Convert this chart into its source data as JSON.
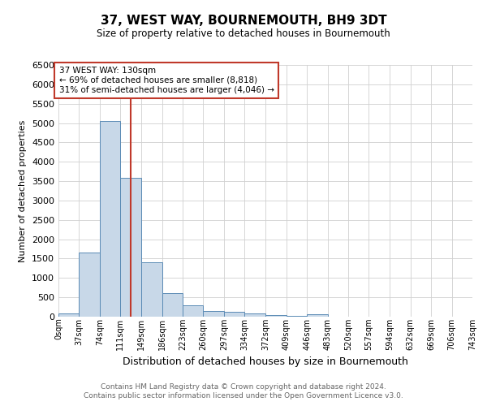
{
  "title": "37, WEST WAY, BOURNEMOUTH, BH9 3DT",
  "subtitle": "Size of property relative to detached houses in Bournemouth",
  "xlabel": "Distribution of detached houses by size in Bournemouth",
  "ylabel": "Number of detached properties",
  "bin_edges": [
    0,
    37,
    74,
    111,
    149,
    186,
    223,
    260,
    297,
    334,
    372,
    409,
    446,
    483,
    520,
    557,
    594,
    632,
    669,
    706,
    743
  ],
  "bar_heights": [
    75,
    1650,
    5050,
    3580,
    1400,
    600,
    300,
    155,
    120,
    90,
    45,
    30,
    55,
    0,
    0,
    0,
    0,
    0,
    0,
    0
  ],
  "bar_color": "#c8d8e8",
  "bar_edge_color": "#5a8ab5",
  "property_size": 130,
  "property_line_color": "#c0392b",
  "annotation_line1": "37 WEST WAY: 130sqm",
  "annotation_line2": "← 69% of detached houses are smaller (8,818)",
  "annotation_line3": "31% of semi-detached houses are larger (4,046) →",
  "annotation_box_edge": "#c0392b",
  "ylim": [
    0,
    6500
  ],
  "footnote1": "Contains HM Land Registry data © Crown copyright and database right 2024.",
  "footnote2": "Contains public sector information licensed under the Open Government Licence v3.0.",
  "background_color": "#ffffff",
  "grid_color": "#d0d0d0",
  "tick_labels": [
    "0sqm",
    "37sqm",
    "74sqm",
    "111sqm",
    "149sqm",
    "186sqm",
    "223sqm",
    "260sqm",
    "297sqm",
    "334sqm",
    "372sqm",
    "409sqm",
    "446sqm",
    "483sqm",
    "520sqm",
    "557sqm",
    "594sqm",
    "632sqm",
    "669sqm",
    "706sqm",
    "743sqm"
  ],
  "title_fontsize": 11,
  "subtitle_fontsize": 8.5,
  "ylabel_fontsize": 8,
  "xlabel_fontsize": 9,
  "tick_fontsize": 7,
  "annotation_fontsize": 7.5,
  "footnote_fontsize": 6.5
}
